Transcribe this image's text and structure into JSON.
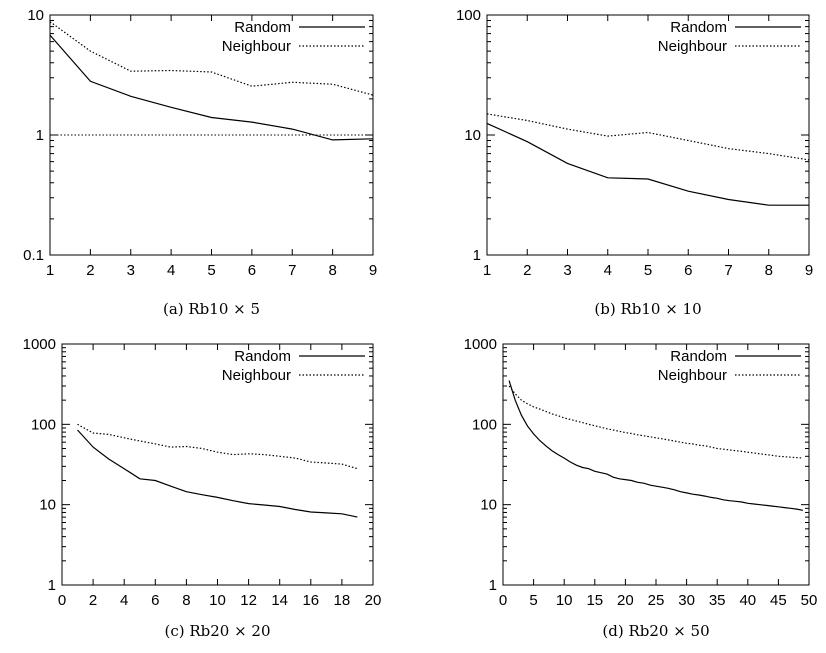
{
  "chart_data": [
    {
      "type": "line",
      "caption": "(a) Rb10 × 5",
      "yscale": "log",
      "xlim": [
        1,
        9
      ],
      "ylim": [
        0.1,
        10
      ],
      "xticks": [
        1,
        2,
        3,
        4,
        5,
        6,
        7,
        8,
        9
      ],
      "yticks": [
        0.1,
        1,
        10
      ],
      "ytick_labels": [
        "0.1",
        "1",
        "10"
      ],
      "legend_position": "top-right",
      "reference_line": 1,
      "series": [
        {
          "name": "Random",
          "style": "solid",
          "x": [
            1,
            2,
            3,
            4,
            5,
            6,
            7,
            8,
            9
          ],
          "y": [
            6.8,
            2.8,
            2.1,
            1.7,
            1.4,
            1.28,
            1.12,
            0.91,
            0.93
          ]
        },
        {
          "name": "Neighbour",
          "style": "dotted",
          "x": [
            1,
            2,
            3,
            4,
            5,
            6,
            7,
            8,
            9
          ],
          "y": [
            8.8,
            5.0,
            3.4,
            3.45,
            3.35,
            2.55,
            2.75,
            2.65,
            2.15
          ]
        }
      ]
    },
    {
      "type": "line",
      "caption": "(b) Rb10 × 10",
      "yscale": "log",
      "xlim": [
        1,
        9
      ],
      "ylim": [
        1,
        100
      ],
      "xticks": [
        1,
        2,
        3,
        4,
        5,
        6,
        7,
        8,
        9
      ],
      "yticks": [
        1,
        10,
        100
      ],
      "ytick_labels": [
        "1",
        "10",
        "100"
      ],
      "legend_position": "top-right",
      "series": [
        {
          "name": "Random",
          "style": "solid",
          "x": [
            1,
            2,
            3,
            4,
            5,
            6,
            7,
            8,
            9
          ],
          "y": [
            12.5,
            8.8,
            5.8,
            4.4,
            4.3,
            3.4,
            2.9,
            2.6,
            2.6
          ]
        },
        {
          "name": "Neighbour",
          "style": "dotted",
          "x": [
            1,
            2,
            3,
            4,
            5,
            6,
            7,
            8,
            9
          ],
          "y": [
            15,
            13.2,
            11.2,
            9.8,
            10.5,
            9.0,
            7.7,
            7.0,
            6.2
          ]
        }
      ]
    },
    {
      "type": "line",
      "caption": "(c) Rb20 × 20",
      "yscale": "log",
      "xlim": [
        0,
        20
      ],
      "ylim": [
        1,
        1000
      ],
      "xticks": [
        0,
        2,
        4,
        6,
        8,
        10,
        12,
        14,
        16,
        18,
        20
      ],
      "yticks": [
        1,
        10,
        100,
        1000
      ],
      "ytick_labels": [
        "1",
        "10",
        "100",
        "1000"
      ],
      "legend_position": "top-right",
      "series": [
        {
          "name": "Random",
          "style": "solid",
          "x": [
            1,
            2,
            3,
            4,
            5,
            6,
            7,
            8,
            9,
            10,
            11,
            12,
            13,
            14,
            15,
            16,
            17,
            18,
            19
          ],
          "y": [
            85,
            52,
            37,
            28,
            21,
            20,
            17,
            14.5,
            13.3,
            12.3,
            11.2,
            10.3,
            9.9,
            9.5,
            8.7,
            8.1,
            7.9,
            7.7,
            7.0
          ]
        },
        {
          "name": "Neighbour",
          "style": "dotted",
          "x": [
            1,
            2,
            3,
            4,
            5,
            6,
            7,
            8,
            9,
            10,
            11,
            12,
            13,
            14,
            15,
            16,
            17,
            18,
            19
          ],
          "y": [
            100,
            78,
            75,
            68,
            62,
            57,
            52,
            53,
            50,
            45,
            42,
            43,
            42,
            40,
            38,
            34,
            33,
            32,
            28
          ]
        }
      ]
    },
    {
      "type": "line",
      "caption": "(d) Rb20 × 50",
      "yscale": "log",
      "xlim": [
        0,
        50
      ],
      "ylim": [
        1,
        1000
      ],
      "xticks": [
        0,
        5,
        10,
        15,
        20,
        25,
        30,
        35,
        40,
        45,
        50
      ],
      "yticks": [
        1,
        10,
        100,
        1000
      ],
      "ytick_labels": [
        "1",
        "10",
        "100",
        "1000"
      ],
      "legend_position": "top-right",
      "series": [
        {
          "name": "Random",
          "style": "solid",
          "x": [
            1,
            2,
            3,
            4,
            5,
            6,
            7,
            8,
            9,
            10,
            11,
            12,
            13,
            14,
            15,
            16,
            17,
            18,
            19,
            20,
            21,
            22,
            23,
            24,
            25,
            26,
            27,
            28,
            29,
            30,
            31,
            32,
            33,
            34,
            35,
            36,
            37,
            38,
            39,
            40,
            41,
            42,
            43,
            44,
            45,
            46,
            47,
            48,
            49
          ],
          "y": [
            350,
            200,
            130,
            95,
            76,
            63,
            54,
            47,
            42,
            38,
            34,
            31,
            29,
            28,
            26,
            25,
            24,
            22,
            21,
            20.5,
            20,
            19,
            18.5,
            17.5,
            17,
            16.5,
            16,
            15.3,
            14.5,
            14,
            13.5,
            13.2,
            12.8,
            12.3,
            12,
            11.5,
            11.2,
            11,
            10.8,
            10.4,
            10.2,
            10,
            9.8,
            9.6,
            9.4,
            9.2,
            9.0,
            8.8,
            8.5
          ]
        },
        {
          "name": "Neighbour",
          "style": "dotted",
          "x": [
            1,
            2,
            3,
            4,
            5,
            6,
            7,
            8,
            9,
            10,
            11,
            12,
            13,
            14,
            15,
            16,
            17,
            18,
            19,
            20,
            21,
            22,
            23,
            24,
            25,
            26,
            27,
            28,
            29,
            30,
            31,
            32,
            33,
            34,
            35,
            36,
            37,
            38,
            39,
            40,
            41,
            42,
            43,
            44,
            45,
            46,
            47,
            48,
            49
          ],
          "y": [
            300,
            240,
            200,
            180,
            165,
            155,
            145,
            135,
            128,
            120,
            115,
            110,
            105,
            100,
            96,
            92,
            88,
            85,
            82,
            79,
            77,
            74,
            72,
            70,
            68,
            66,
            64,
            62,
            60,
            58,
            57,
            55,
            54,
            52,
            50,
            49,
            48,
            47,
            46,
            45,
            44,
            43,
            42,
            41,
            40,
            39.5,
            39,
            38.5,
            38
          ]
        }
      ]
    }
  ]
}
